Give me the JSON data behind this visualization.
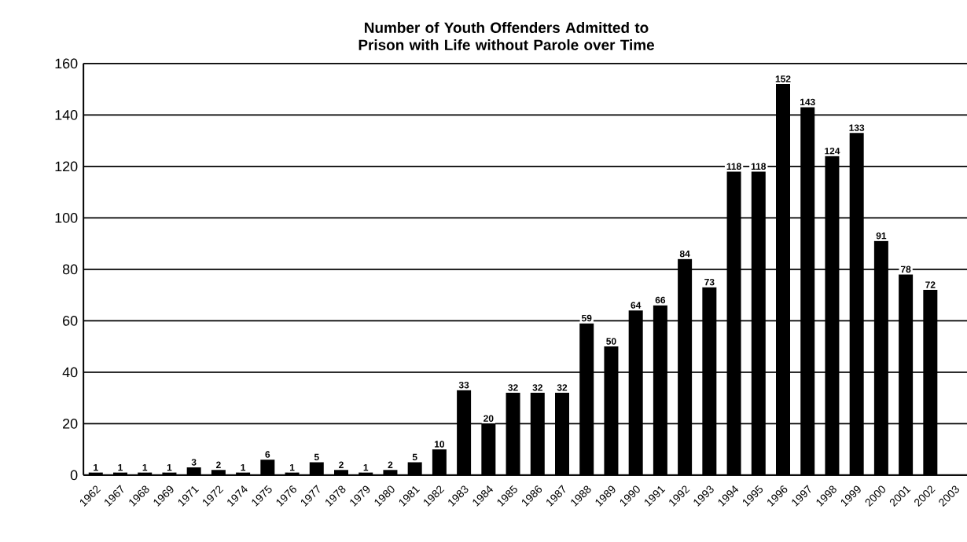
{
  "chart_data": {
    "type": "bar",
    "title": "Number of Youth Offenders Admitted to Prison with Life without Parole over Time",
    "categories": [
      "1962",
      "1967",
      "1968",
      "1969",
      "1971",
      "1972",
      "1974",
      "1975",
      "1976",
      "1977",
      "1978",
      "1979",
      "1980",
      "1981",
      "1982",
      "1983",
      "1984",
      "1985",
      "1986",
      "1987",
      "1988",
      "1989",
      "1990",
      "1991",
      "1992",
      "1993",
      "1994",
      "1995",
      "1996",
      "1997",
      "1998",
      "1999",
      "2000",
      "2001",
      "2002",
      "2003"
    ],
    "values": [
      1,
      1,
      1,
      1,
      3,
      2,
      1,
      6,
      1,
      5,
      2,
      1,
      2,
      5,
      10,
      33,
      20,
      32,
      32,
      32,
      59,
      50,
      64,
      66,
      84,
      73,
      118,
      118,
      152,
      143,
      124,
      133,
      91,
      78,
      72,
      null
    ],
    "color": "#000000",
    "ylim": [
      0,
      160
    ],
    "yticks": [
      0,
      20,
      40,
      60,
      80,
      100,
      120,
      140,
      160
    ],
    "grid": "y",
    "data_labels": true
  }
}
